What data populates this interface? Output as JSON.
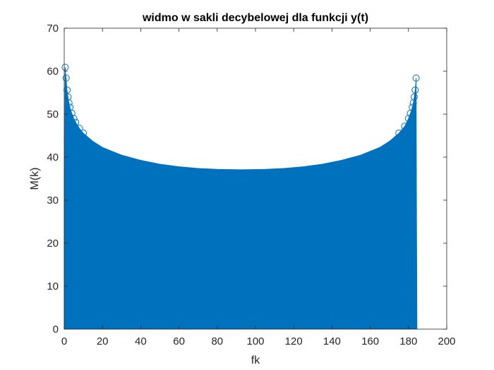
{
  "chart_data": {
    "type": "stem",
    "title": "widmo w sakli decybelowej dla funkcji y(t)",
    "xlabel": "fk",
    "ylabel": "M(k)",
    "xlim": [
      0,
      200
    ],
    "ylim": [
      0,
      70
    ],
    "xticks": [
      "0",
      "20",
      "40",
      "60",
      "80",
      "100",
      "120",
      "140",
      "160",
      "180",
      "200"
    ],
    "yticks": [
      "0",
      "10",
      "20",
      "30",
      "40",
      "50",
      "60",
      "70"
    ],
    "grid": false,
    "color": "#0072BD",
    "series": [
      {
        "x": [
          0,
          0.5,
          1,
          1.5,
          2,
          2.5,
          3,
          4,
          5,
          6,
          8,
          10,
          15,
          20,
          30,
          40,
          50,
          60,
          70,
          80,
          92.5,
          105,
          115,
          125,
          135,
          145,
          155,
          165,
          170,
          175,
          178,
          180,
          181,
          182,
          182.5,
          183,
          183.5,
          184,
          184.5,
          185
        ],
        "y": [
          37,
          60.9,
          58.4,
          55.6,
          54.0,
          52.6,
          51.6,
          50.2,
          49.0,
          48.1,
          46.7,
          45.6,
          43.7,
          42.3,
          40.5,
          39.3,
          38.4,
          37.8,
          37.4,
          37.2,
          37.1,
          37.2,
          37.4,
          37.8,
          38.4,
          39.3,
          40.5,
          42.3,
          43.7,
          45.6,
          47.2,
          49.0,
          50.2,
          51.6,
          52.6,
          54.0,
          55.6,
          58.4,
          0,
          0
        ]
      }
    ]
  }
}
